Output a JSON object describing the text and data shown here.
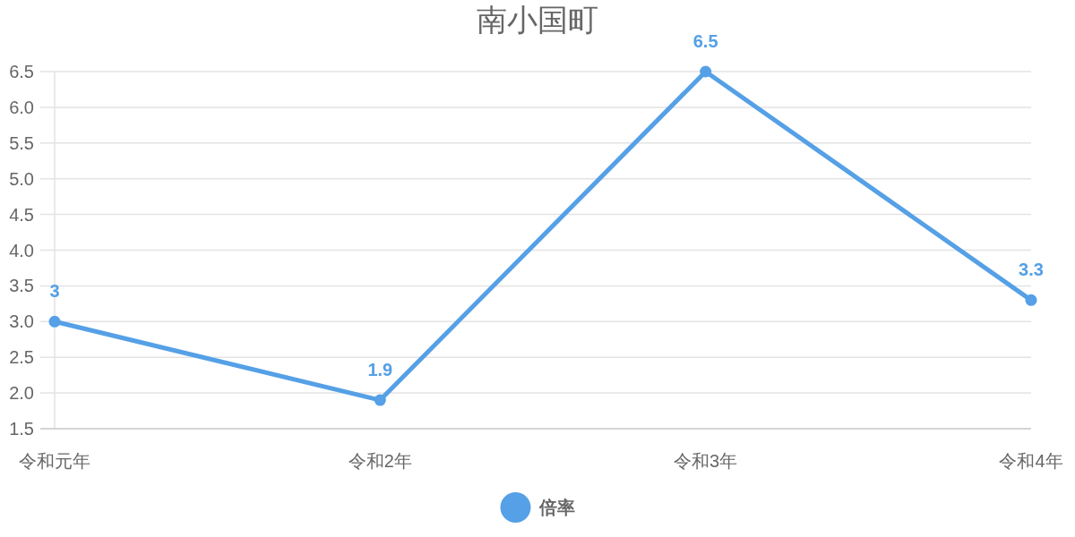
{
  "chart_data": {
    "type": "line",
    "title": "南小国町",
    "categories": [
      "令和元年",
      "令和2年",
      "令和3年",
      "令和4年"
    ],
    "series": [
      {
        "name": "倍率",
        "color": "#55a0e6",
        "values": [
          3,
          1.9,
          6.5,
          3.3
        ]
      }
    ],
    "ylim": [
      1.5,
      6.5
    ],
    "yticks": [
      1.5,
      {
        "value": 2,
        "label": "2.0"
      },
      2.5,
      {
        "value": 3,
        "label": "3.0"
      },
      3.5,
      {
        "value": 4,
        "label": "4.0"
      },
      4.5,
      {
        "value": 5,
        "label": "5.0"
      },
      5.5,
      {
        "value": 6,
        "label": "6.0"
      },
      6.5
    ],
    "grid": "y",
    "legend": "bottom",
    "marker": "circle",
    "data_labels": true
  }
}
